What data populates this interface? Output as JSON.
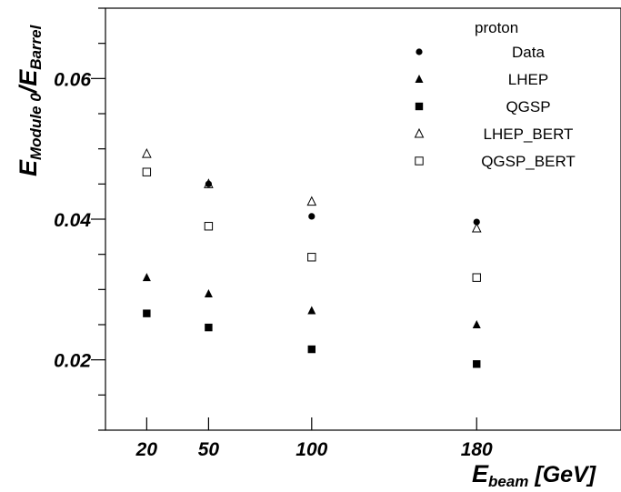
{
  "chart_data": {
    "type": "scatter",
    "legend_header": "proton",
    "legend_placement": "top-right",
    "grid": false,
    "xlabel": {
      "main": "E",
      "sub": "beam",
      "unit": " [GeV]"
    },
    "ylabel": {
      "main": "E",
      "sub1": "Module 0",
      "sep": "/E",
      "sub2": "Barrel"
    },
    "xlim": [
      0,
      250
    ],
    "ylim": [
      0.01,
      0.07
    ],
    "x_ticks": [
      20,
      50,
      100,
      180
    ],
    "y_ticks": [
      0.02,
      0.04,
      0.06
    ],
    "y_tick_labels": [
      "0.02",
      "0.04",
      "0.06"
    ],
    "series": [
      {
        "name": "Data",
        "marker": "filled-circle",
        "x": [
          20,
          50,
          100,
          180
        ],
        "y": [
          null,
          0.045,
          0.0404,
          0.0396
        ]
      },
      {
        "name": "LHEP",
        "marker": "filled-triangle",
        "x": [
          20,
          50,
          100,
          180
        ],
        "y": [
          0.0317,
          0.0294,
          0.027,
          0.025
        ]
      },
      {
        "name": "QGSP",
        "marker": "filled-square",
        "x": [
          20,
          50,
          100,
          180
        ],
        "y": [
          0.0266,
          0.0246,
          0.0215,
          0.0194
        ]
      },
      {
        "name": "LHEP_BERT",
        "marker": "open-triangle",
        "x": [
          20,
          50,
          100,
          180
        ],
        "y": [
          0.0493,
          0.045,
          0.0425,
          0.0387
        ]
      },
      {
        "name": "QGSP_BERT",
        "marker": "open-square",
        "x": [
          20,
          50,
          100,
          180
        ],
        "y": [
          0.0467,
          0.039,
          0.0346,
          0.0317
        ]
      }
    ]
  }
}
